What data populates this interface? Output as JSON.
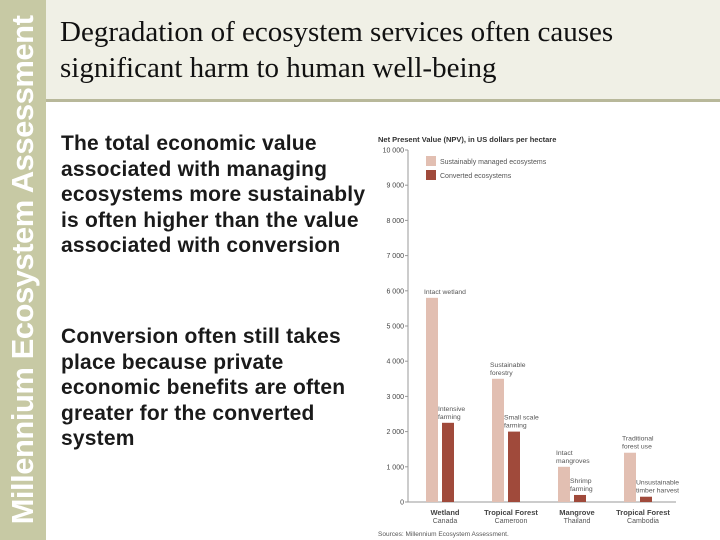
{
  "sidebar": {
    "label": "Millennium Ecosystem Assessment"
  },
  "slide": {
    "title": "Degradation of ecosystem services often causes significant harm to human well-being",
    "bullets": [
      "The total economic value associated with managing ecosystems more sustainably is often higher than the value associated with conversion",
      "Conversion often still takes place because private economic benefits are often greater for the converted system"
    ]
  },
  "colors": {
    "sustainable": "#e2bfb2",
    "converted": "#a04a3b",
    "sidebar": "#c7c9a4",
    "title_band": "#f0f0e6"
  },
  "chart_data": {
    "type": "bar",
    "title": "Net Present Value (NPV), in US dollars per hectare",
    "source": "Sources: Millennium Ecosystem Assessment.",
    "ylim": [
      0,
      10000
    ],
    "yticks": [
      0,
      1000,
      2000,
      3000,
      4000,
      5000,
      6000,
      7000,
      8000,
      9000,
      10000
    ],
    "ytick_labels": [
      "0",
      "1 000",
      "2 000",
      "3 000",
      "4 000",
      "5 000",
      "6 000",
      "7 000",
      "8 000",
      "9 000",
      "10 000"
    ],
    "legend_position": "top-left",
    "categories": [
      {
        "name": "Wetland",
        "place": "Canada"
      },
      {
        "name": "Tropical Forest",
        "place": "Cameroon"
      },
      {
        "name": "Mangrove",
        "place": "Thailand"
      },
      {
        "name": "Tropical Forest",
        "place": "Cambodia"
      }
    ],
    "series": [
      {
        "name": "Sustainably managed ecosystems",
        "values": [
          5800,
          3500,
          1000,
          1400
        ],
        "labels": [
          "Intact wetland",
          "Sustainable forestry",
          "Intact mangroves",
          "Traditional forest use"
        ]
      },
      {
        "name": "Converted ecosystems",
        "values": [
          2250,
          2000,
          200,
          150
        ],
        "labels": [
          "Intensive farming",
          "Small scale farming",
          "Shrimp farming",
          "Unsustainable timber harvest"
        ]
      }
    ]
  }
}
